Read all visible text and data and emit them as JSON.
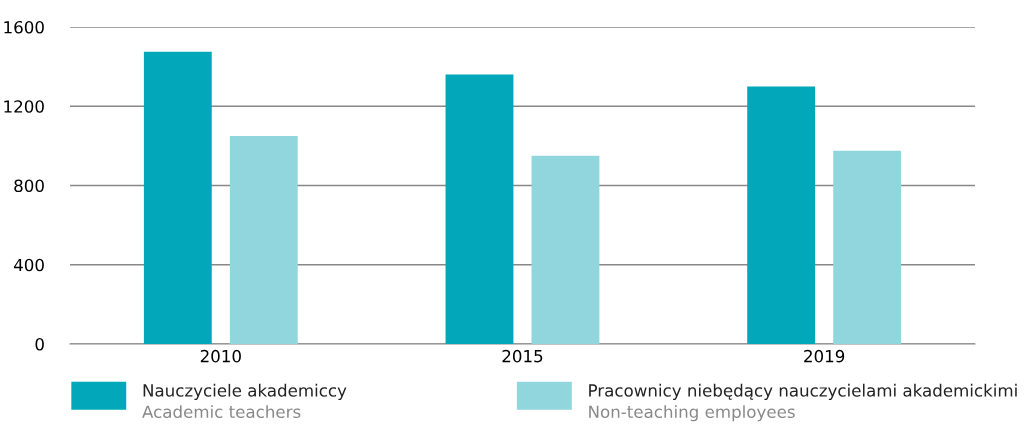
{
  "chart_data": {
    "type": "bar",
    "categories": [
      "2010",
      "2015",
      "2019"
    ],
    "series": [
      {
        "name": "Nauczyciele akademiccy\nAcademic teachers",
        "color": "#02a8ba",
        "values": [
          1475,
          1360,
          1300
        ]
      },
      {
        "name": "Pracownicy niebędący nauczycielami akademickimi\nNon-teaching employees",
        "color": "#91d6dc",
        "values": [
          1050,
          950,
          975
        ]
      }
    ],
    "ylim": [
      0,
      1600
    ],
    "yticks": [
      0,
      400,
      800,
      1200,
      1600
    ],
    "grid": "y",
    "legend": "bottom"
  }
}
